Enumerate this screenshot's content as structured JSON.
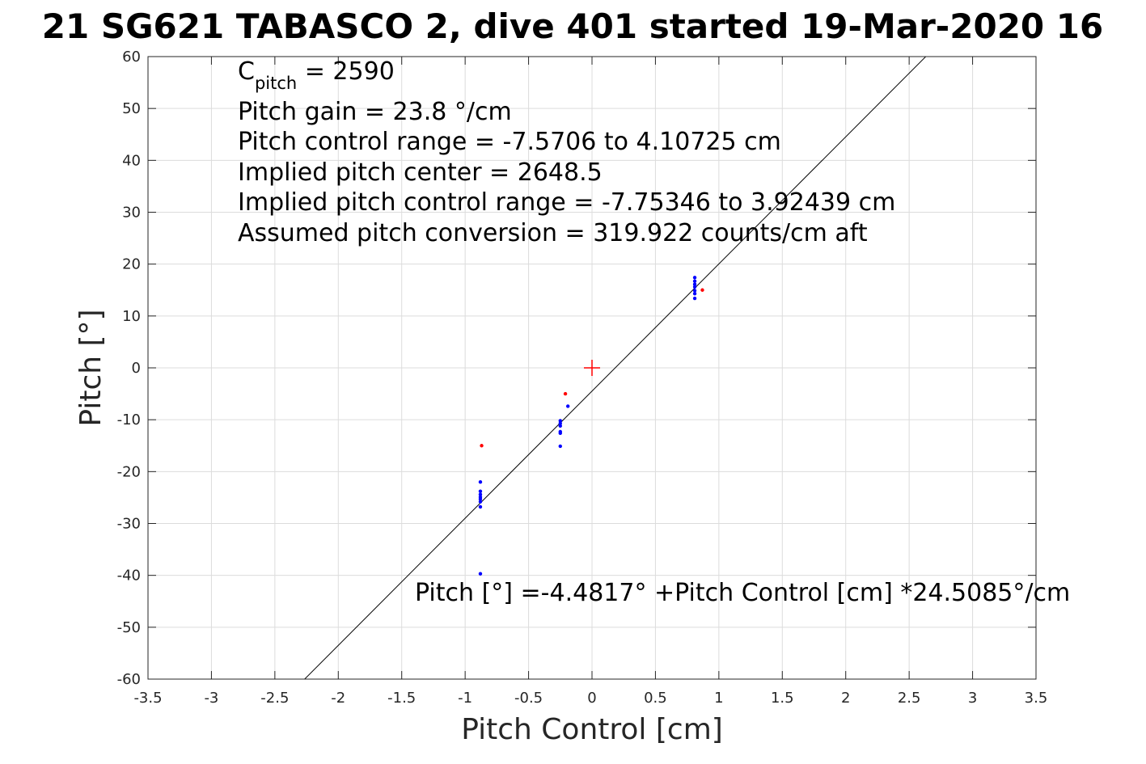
{
  "chart_data": {
    "type": "scatter",
    "title": "21 SG621 TABASCO 2, dive 401 started 19-Mar-2020 16",
    "xlabel": "Pitch Control [cm]",
    "ylabel": "Pitch [°]",
    "xlim": [
      -3.5,
      3.5
    ],
    "ylim": [
      -60,
      60
    ],
    "x_ticks": [
      -3.5,
      -3,
      -2.5,
      -2,
      -1.5,
      -1,
      -0.5,
      0,
      0.5,
      1,
      1.5,
      2,
      2.5,
      3,
      3.5
    ],
    "x_tick_labels": [
      "-3.5",
      "-3",
      "-2.5",
      "-2",
      "-1.5",
      "-1",
      "-0.5",
      "0",
      "0.5",
      "1",
      "1.5",
      "2",
      "2.5",
      "3",
      "3.5"
    ],
    "y_ticks": [
      60,
      50,
      40,
      30,
      20,
      10,
      0,
      -10,
      -20,
      -30,
      -40,
      -50,
      -60
    ],
    "y_tick_labels": [
      "60",
      "50",
      "40",
      "30",
      "20",
      "10",
      "0",
      "-10",
      "-20",
      "-30",
      "-40",
      "-50",
      "-60"
    ],
    "grid": true,
    "colors": {
      "blue": "#0000ff",
      "red": "#ff0000",
      "fit_line": "#000000",
      "grid": "#dcdcdc"
    },
    "series": [
      {
        "color": "#0000ff",
        "points": [
          [
            -0.88,
            -22.0
          ],
          [
            -0.88,
            -23.8
          ],
          [
            -0.88,
            -24.4
          ],
          [
            -0.88,
            -24.9
          ],
          [
            -0.88,
            -25.3
          ],
          [
            -0.88,
            -25.8
          ],
          [
            -0.88,
            -26.8
          ],
          [
            -0.88,
            -39.7
          ],
          [
            -0.25,
            -10.2
          ],
          [
            -0.25,
            -10.7
          ],
          [
            -0.25,
            -11.2
          ],
          [
            -0.25,
            -12.3
          ],
          [
            -0.25,
            -12.6
          ],
          [
            -0.25,
            -15.1
          ],
          [
            -0.19,
            -7.4
          ],
          [
            0.81,
            13.4
          ],
          [
            0.81,
            14.3
          ],
          [
            0.81,
            14.9
          ],
          [
            0.81,
            15.6
          ],
          [
            0.81,
            16.1
          ],
          [
            0.81,
            16.7
          ],
          [
            0.81,
            17.4
          ]
        ]
      },
      {
        "color": "#ff0000",
        "points": [
          [
            -0.87,
            -15.0
          ],
          [
            -0.21,
            -5.0
          ],
          [
            0.87,
            15.0
          ]
        ]
      }
    ],
    "marker": {
      "x": 0,
      "y": 0,
      "symbol": "+",
      "color": "#ff0000"
    },
    "fit": {
      "intercept": -4.4817,
      "slope": 24.5085
    },
    "annotations": [
      {
        "main": "C",
        "sub": "pitch",
        "rest": " = 2590"
      },
      {
        "text": "Pitch gain = 23.8 °/cm"
      },
      {
        "text": "Pitch control range = -7.5706 to 4.10725 cm"
      },
      {
        "text": "Implied pitch center = 2648.5"
      },
      {
        "text": "Implied pitch control range = -7.75346 to 3.92439 cm"
      },
      {
        "text": "Assumed pitch conversion = 319.922 counts/cm aft"
      }
    ],
    "fit_label": "Pitch [°] =-4.4817° +Pitch Control [cm] *24.5085°/cm"
  }
}
